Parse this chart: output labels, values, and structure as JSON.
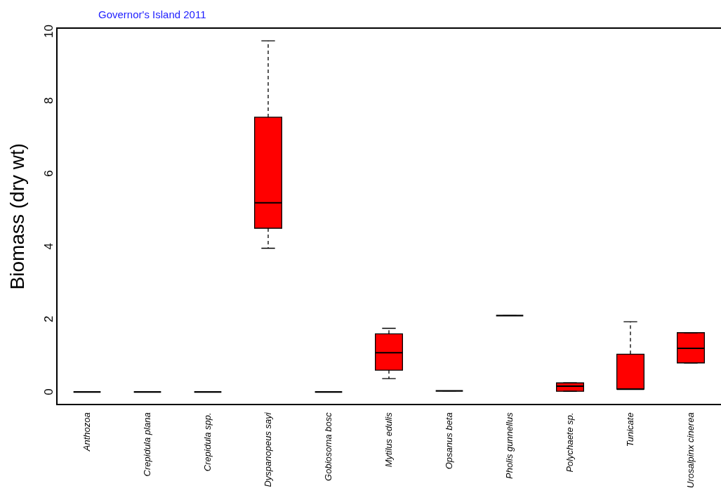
{
  "chart_data": {
    "type": "box",
    "title": "Governor's Island 2011",
    "ylabel": "Biomass (dry wt)",
    "categories": [
      "Anthozoa",
      "Crepidula plana",
      "Crepidula spp.",
      "Dyspanopeus sayi",
      "Gobiosoma bosc",
      "Mytilus edulis",
      "Opsanus beta",
      "Pholis gunnellus",
      "Polychaete sp.",
      "Tunicate",
      "Urosalpinx cinerea"
    ],
    "boxes": [
      {
        "low": 0,
        "q1": 0,
        "median": 0,
        "q3": 0,
        "high": 0
      },
      {
        "low": 0,
        "q1": 0,
        "median": 0,
        "q3": 0,
        "high": 0
      },
      {
        "low": 0,
        "q1": 0,
        "median": 0,
        "q3": 0,
        "high": 0
      },
      {
        "low": 3.95,
        "q1": 4.5,
        "median": 5.2,
        "q3": 7.55,
        "high": 9.65
      },
      {
        "low": 0,
        "q1": 0,
        "median": 0,
        "q3": 0,
        "high": 0
      },
      {
        "low": 0.37,
        "q1": 0.6,
        "median": 1.08,
        "q3": 1.6,
        "high": 1.75
      },
      {
        "low": 0.03,
        "q1": 0.03,
        "median": 0.03,
        "q3": 0.03,
        "high": 0.03
      },
      {
        "low": 2.1,
        "q1": 2.1,
        "median": 2.1,
        "q3": 2.1,
        "high": 2.1
      },
      {
        "low": 0.02,
        "q1": 0.02,
        "median": 0.16,
        "q3": 0.25,
        "high": 0.25
      },
      {
        "low": 0.08,
        "q1": 0.08,
        "median": 0.08,
        "q3": 1.04,
        "high": 1.93
      },
      {
        "low": 0.8,
        "q1": 0.8,
        "median": 1.2,
        "q3": 1.63,
        "high": 1.63
      }
    ],
    "colors": [
      "#000000",
      "#000000",
      "#000000",
      "#ff0000",
      "#000000",
      "#ff0000",
      "#000000",
      "#000000",
      "#ff0000",
      "#ff0000",
      "#ff0000"
    ],
    "ylim": [
      -0.35,
      10
    ],
    "yticks": [
      0,
      2,
      4,
      6,
      8,
      10
    ]
  }
}
